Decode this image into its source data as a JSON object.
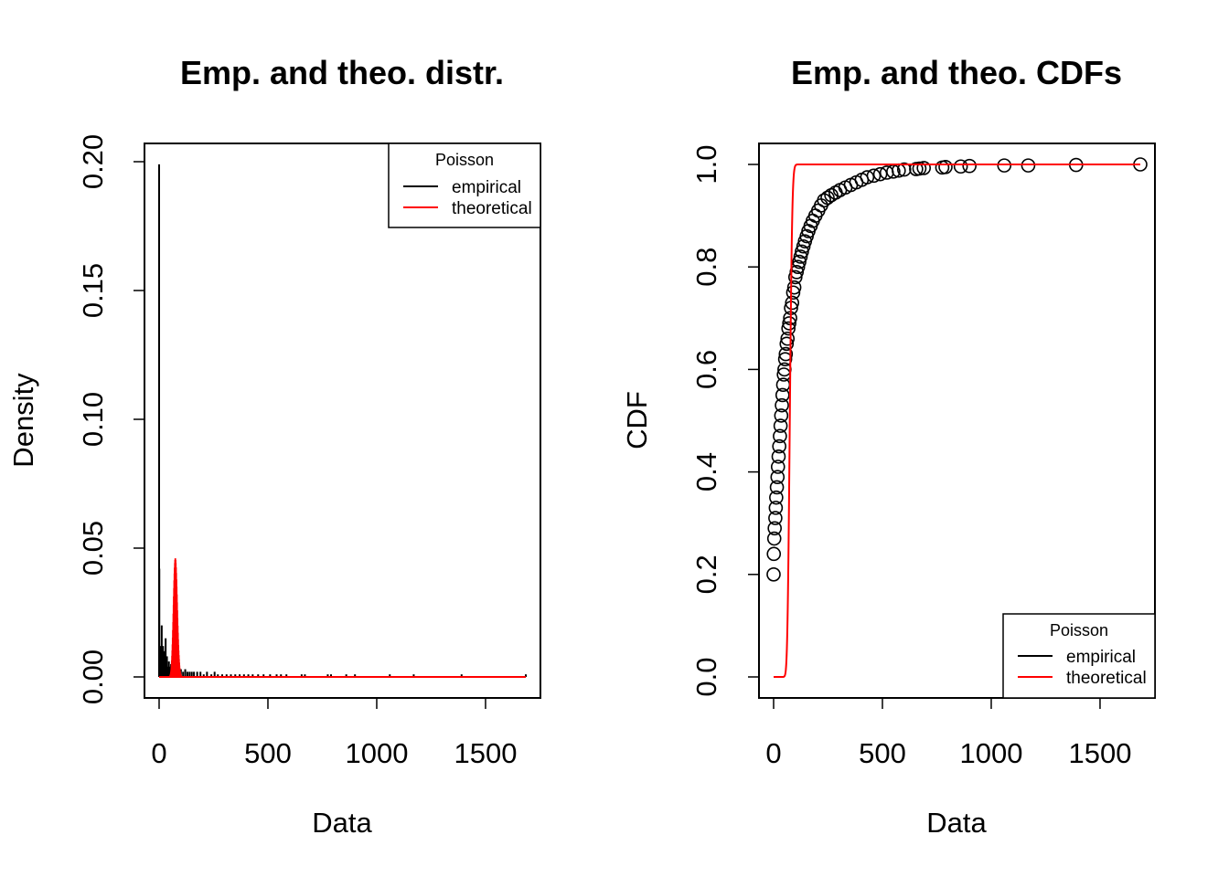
{
  "chart_data": [
    {
      "type": "line",
      "title": "Emp. and theo. distr.",
      "xlabel": "Data",
      "ylabel": "Density",
      "xlim": [
        0,
        1700
      ],
      "ylim": [
        0,
        0.2
      ],
      "x_ticks": [
        "0",
        "500",
        "1000",
        "1500"
      ],
      "y_ticks": [
        "0.00",
        "0.05",
        "0.10",
        "0.15",
        "0.20"
      ],
      "legend": {
        "title": "Poisson",
        "position": "top-right",
        "entries": [
          {
            "label": "empirical",
            "color": "#000000"
          },
          {
            "label": "theoretical",
            "color": "#ff0000"
          }
        ]
      },
      "series": [
        {
          "name": "empirical",
          "kind": "spikes",
          "color": "#000000",
          "points": [
            [
              0,
              0.199
            ],
            [
              1,
              0.042
            ],
            [
              3,
              0.01
            ],
            [
              5,
              0.008
            ],
            [
              8,
              0.012
            ],
            [
              10,
              0.006
            ],
            [
              12,
              0.02
            ],
            [
              15,
              0.008
            ],
            [
              18,
              0.012
            ],
            [
              20,
              0.005
            ],
            [
              24,
              0.01
            ],
            [
              28,
              0.006
            ],
            [
              30,
              0.015
            ],
            [
              33,
              0.005
            ],
            [
              36,
              0.008
            ],
            [
              40,
              0.004
            ],
            [
              45,
              0.006
            ],
            [
              50,
              0.004
            ],
            [
              55,
              0.005
            ],
            [
              60,
              0.003
            ],
            [
              65,
              0.004
            ],
            [
              70,
              0.003
            ],
            [
              80,
              0.004
            ],
            [
              90,
              0.003
            ],
            [
              100,
              0.003
            ],
            [
              110,
              0.002
            ],
            [
              120,
              0.003
            ],
            [
              130,
              0.002
            ],
            [
              140,
              0.002
            ],
            [
              150,
              0.002
            ],
            [
              160,
              0.002
            ],
            [
              175,
              0.002
            ],
            [
              190,
              0.002
            ],
            [
              205,
              0.001
            ],
            [
              220,
              0.002
            ],
            [
              240,
              0.001
            ],
            [
              255,
              0.002
            ],
            [
              270,
              0.001
            ],
            [
              290,
              0.001
            ],
            [
              310,
              0.001
            ],
            [
              330,
              0.001
            ],
            [
              350,
              0.001
            ],
            [
              370,
              0.001
            ],
            [
              390,
              0.001
            ],
            [
              410,
              0.001
            ],
            [
              430,
              0.001
            ],
            [
              455,
              0.001
            ],
            [
              480,
              0.001
            ],
            [
              510,
              0.001
            ],
            [
              540,
              0.001
            ],
            [
              560,
              0.001
            ],
            [
              585,
              0.001
            ],
            [
              655,
              0.001
            ],
            [
              670,
              0.001
            ],
            [
              775,
              0.001
            ],
            [
              790,
              0.001
            ],
            [
              860,
              0.001
            ],
            [
              900,
              0.001
            ],
            [
              1060,
              0.001
            ],
            [
              1170,
              0.001
            ],
            [
              1390,
              0.001
            ],
            [
              1685,
              0.001
            ]
          ]
        },
        {
          "name": "theoretical",
          "kind": "poisson_pmf",
          "color": "#ff0000",
          "lambda": 75,
          "x_max": 1685
        }
      ]
    },
    {
      "type": "line",
      "title": "Emp. and theo. CDFs",
      "xlabel": "Data",
      "ylabel": "CDF",
      "xlim": [
        0,
        1700
      ],
      "ylim": [
        0,
        1
      ],
      "x_ticks": [
        "0",
        "500",
        "1000",
        "1500"
      ],
      "y_ticks": [
        "0.0",
        "0.2",
        "0.4",
        "0.6",
        "0.8",
        "1.0"
      ],
      "legend": {
        "title": "Poisson",
        "position": "bottom-right",
        "entries": [
          {
            "label": "empirical",
            "color": "#000000"
          },
          {
            "label": "theoretical",
            "color": "#ff0000"
          }
        ]
      },
      "series": [
        {
          "name": "empirical",
          "kind": "points",
          "color": "#000000",
          "points": [
            [
              0,
              0.2
            ],
            [
              1,
              0.24
            ],
            [
              3,
              0.27
            ],
            [
              5,
              0.29
            ],
            [
              8,
              0.31
            ],
            [
              10,
              0.33
            ],
            [
              12,
              0.35
            ],
            [
              15,
              0.37
            ],
            [
              18,
              0.39
            ],
            [
              20,
              0.41
            ],
            [
              23,
              0.43
            ],
            [
              26,
              0.45
            ],
            [
              29,
              0.47
            ],
            [
              32,
              0.49
            ],
            [
              35,
              0.51
            ],
            [
              38,
              0.53
            ],
            [
              41,
              0.55
            ],
            [
              44,
              0.57
            ],
            [
              47,
              0.59
            ],
            [
              50,
              0.6
            ],
            [
              53,
              0.62
            ],
            [
              56,
              0.63
            ],
            [
              60,
              0.65
            ],
            [
              64,
              0.66
            ],
            [
              68,
              0.68
            ],
            [
              72,
              0.69
            ],
            [
              76,
              0.7
            ],
            [
              80,
              0.72
            ],
            [
              85,
              0.73
            ],
            [
              90,
              0.75
            ],
            [
              95,
              0.76
            ],
            [
              100,
              0.78
            ],
            [
              106,
              0.79
            ],
            [
              112,
              0.8
            ],
            [
              118,
              0.81
            ],
            [
              124,
              0.82
            ],
            [
              130,
              0.83
            ],
            [
              137,
              0.84
            ],
            [
              144,
              0.85
            ],
            [
              152,
              0.86
            ],
            [
              160,
              0.87
            ],
            [
              170,
              0.88
            ],
            [
              180,
              0.89
            ],
            [
              192,
              0.9
            ],
            [
              205,
              0.91
            ],
            [
              218,
              0.92
            ],
            [
              232,
              0.93
            ],
            [
              248,
              0.935
            ],
            [
              265,
              0.94
            ],
            [
              285,
              0.945
            ],
            [
              305,
              0.95
            ],
            [
              330,
              0.955
            ],
            [
              355,
              0.96
            ],
            [
              380,
              0.965
            ],
            [
              405,
              0.97
            ],
            [
              430,
              0.975
            ],
            [
              460,
              0.978
            ],
            [
              490,
              0.981
            ],
            [
              520,
              0.984
            ],
            [
              550,
              0.986
            ],
            [
              575,
              0.988
            ],
            [
              600,
              0.99
            ],
            [
              655,
              0.991
            ],
            [
              670,
              0.992
            ],
            [
              690,
              0.993
            ],
            [
              775,
              0.994
            ],
            [
              790,
              0.995
            ],
            [
              860,
              0.996
            ],
            [
              900,
              0.997
            ],
            [
              1060,
              0.998
            ],
            [
              1170,
              0.998
            ],
            [
              1390,
              0.999
            ],
            [
              1685,
              1.0
            ]
          ]
        },
        {
          "name": "theoretical",
          "kind": "poisson_cdf",
          "color": "#ff0000",
          "lambda": 75,
          "x_max": 1685
        }
      ]
    }
  ]
}
